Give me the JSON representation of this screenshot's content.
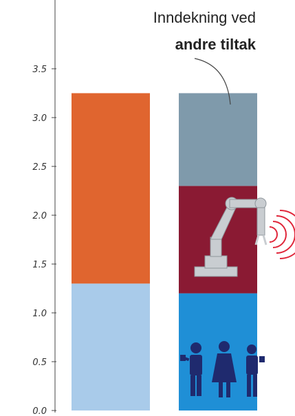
{
  "chart_data": {
    "type": "bar",
    "stacked": true,
    "ylim": [
      0,
      3.5
    ],
    "yticks": [
      0.0,
      0.5,
      1.0,
      1.5,
      2.0,
      2.5,
      3.0,
      3.5
    ],
    "ytick_labels": [
      "0.0",
      "0.5",
      "1.0",
      "1.5",
      "2.0",
      "2.5",
      "3.0",
      "3.5"
    ],
    "grid": false,
    "bars": [
      {
        "segments": [
          {
            "value": 1.3,
            "color": "#a9cbea"
          },
          {
            "value": 1.95,
            "color": "#e0652f"
          }
        ]
      },
      {
        "segments": [
          {
            "value": 1.2,
            "color": "#1f8fd6",
            "icon": "people-icon"
          },
          {
            "value": 1.1,
            "color": "#8a1a33",
            "icon": "robot-arm-icon"
          },
          {
            "value": 0.95,
            "color": "#7f9aab"
          }
        ]
      }
    ],
    "annotation": {
      "line1": "Inndekning ved",
      "line2": "andre tiltak"
    }
  }
}
